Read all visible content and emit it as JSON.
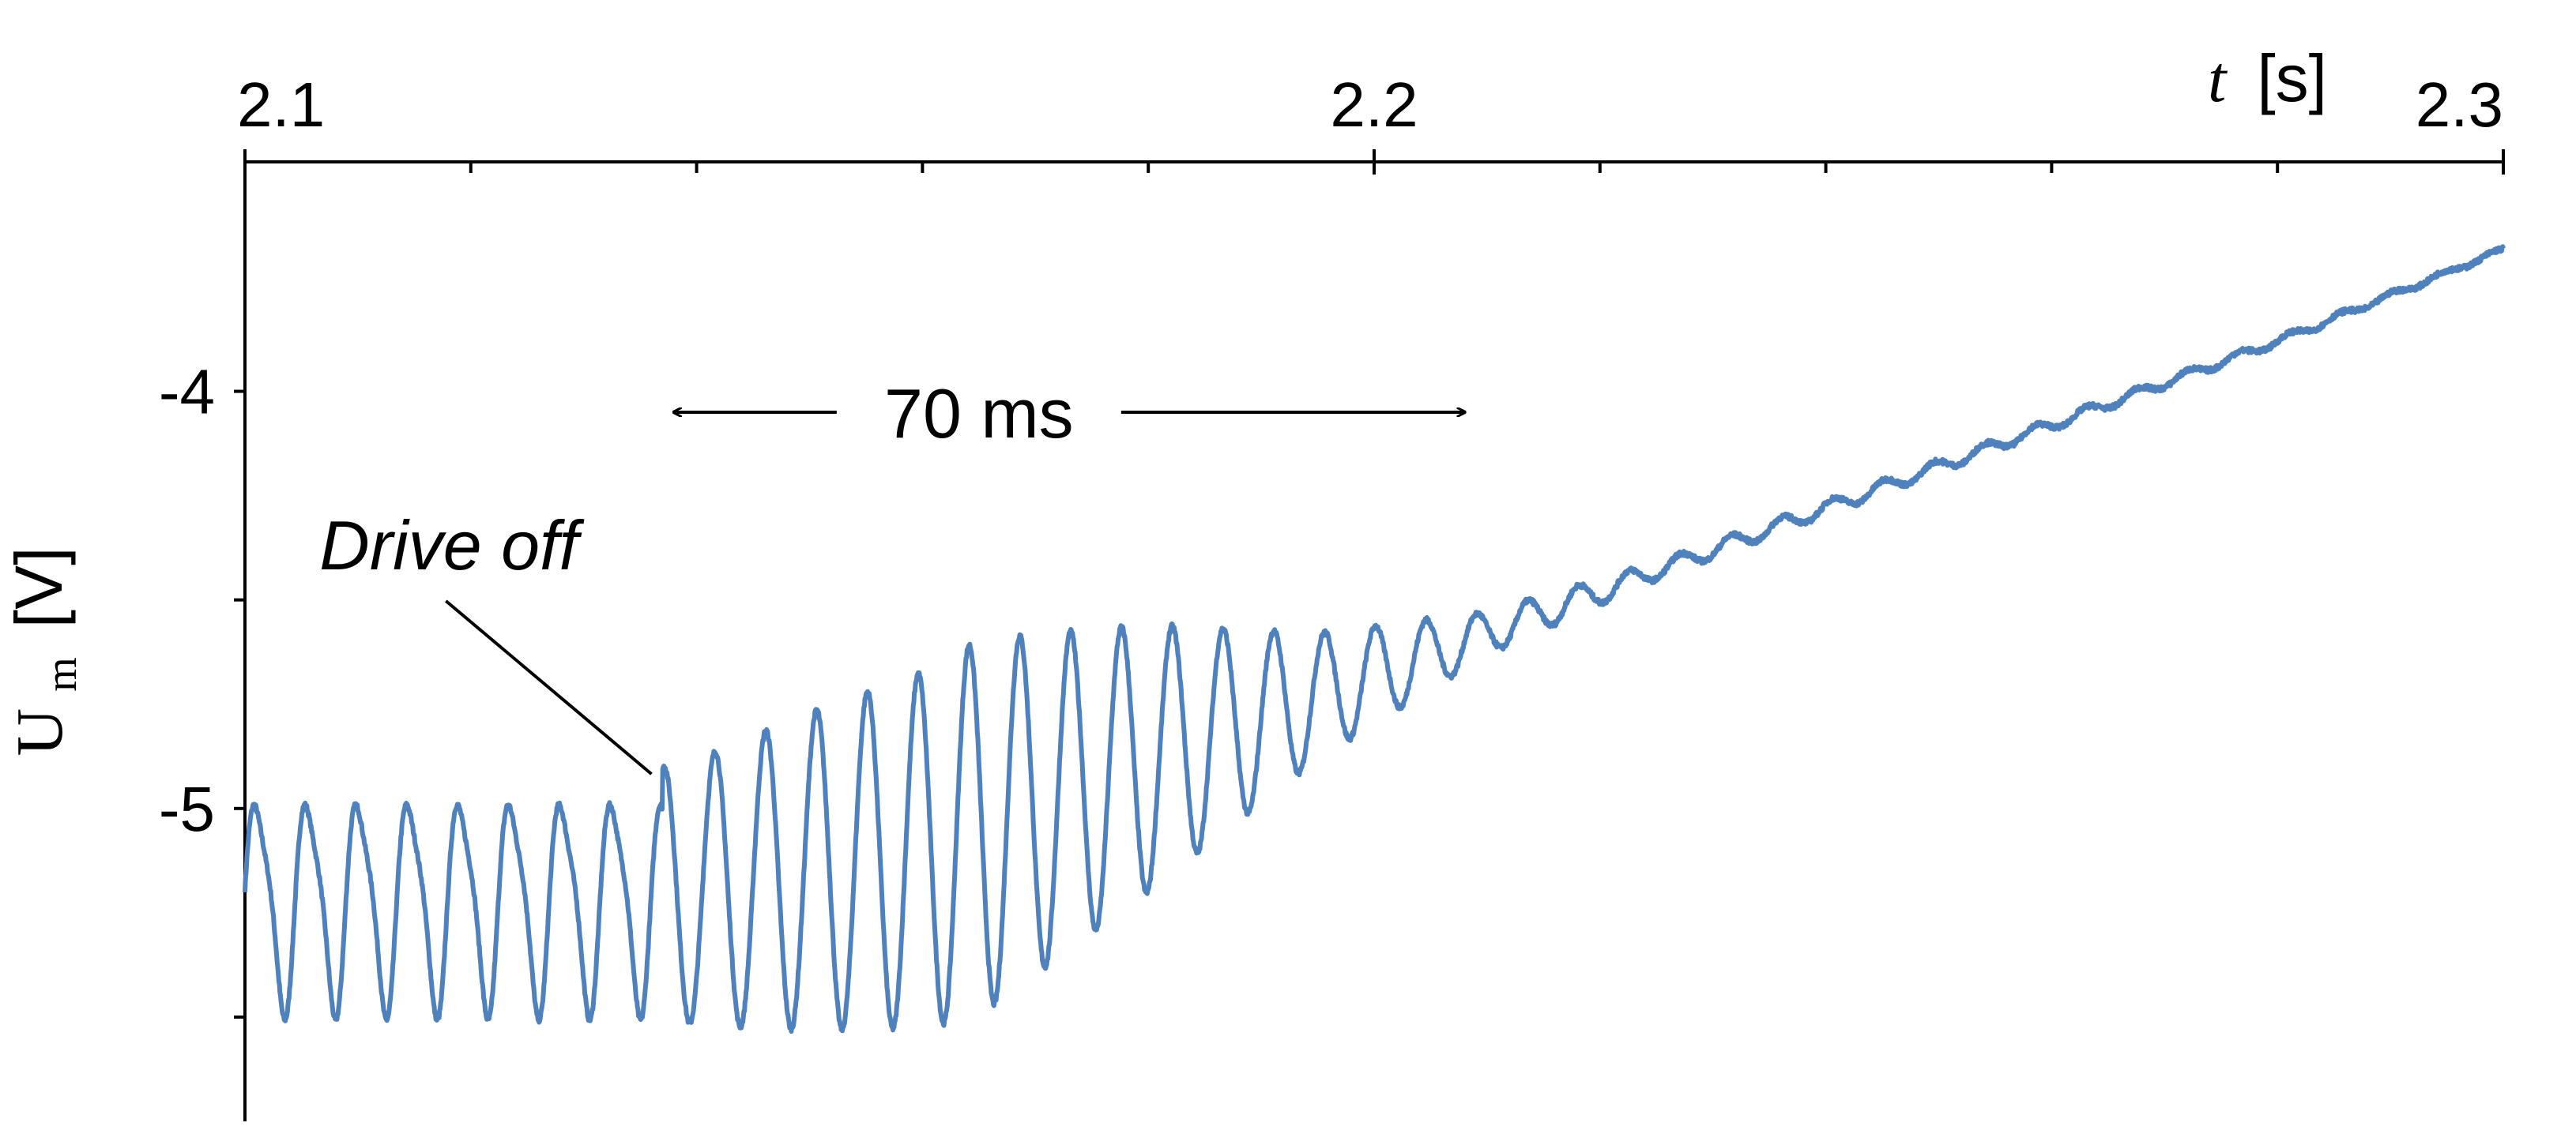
{
  "chart_data": {
    "type": "line",
    "xlabel_var": "t",
    "xlabel_unit": "[s]",
    "ylabel_var": "U",
    "ylabel_sub": "m",
    "ylabel_unit": "[V]",
    "x_axis_position": "top",
    "xlim": [
      2.1,
      2.3
    ],
    "ylim": [
      -5.75,
      -3.45
    ],
    "x_major_ticks": [
      2.1,
      2.2,
      2.3
    ],
    "x_tick_labels": [
      "2.1",
      "2.2",
      "2.3"
    ],
    "x_minor_ticks": [
      2.12,
      2.14,
      2.16,
      2.18,
      2.22,
      2.24,
      2.26,
      2.28
    ],
    "y_ticks": [
      -4.0,
      -4.5,
      -5.0,
      -5.5
    ],
    "y_tick_labels": [
      "-4",
      "",
      "-5",
      ""
    ],
    "grid": false,
    "series_color": "#4f81bd",
    "series": [
      {
        "oscillation_model": {
          "drive_off_t": 2.137,
          "period_s": 0.0045,
          "driven_top": -4.93,
          "driven_bottom": -5.52,
          "baseline": [
            {
              "t": 2.1,
              "u": -5.2
            },
            {
              "t": 2.14,
              "u": -5.2
            },
            {
              "t": 2.16,
              "u": -5.1
            },
            {
              "t": 2.18,
              "u": -4.88
            },
            {
              "t": 2.2,
              "u": -4.68
            },
            {
              "t": 2.22,
              "u": -4.48
            },
            {
              "t": 2.24,
              "u": -4.28
            },
            {
              "t": 2.26,
              "u": -4.08
            },
            {
              "t": 2.28,
              "u": -3.88
            },
            {
              "t": 2.3,
              "u": -3.66
            }
          ],
          "amplitude": [
            {
              "t": 2.1,
              "a": 0.3
            },
            {
              "t": 2.137,
              "a": 0.3
            },
            {
              "t": 2.15,
              "a": 0.38
            },
            {
              "t": 2.165,
              "a": 0.45
            },
            {
              "t": 2.18,
              "a": 0.32
            },
            {
              "t": 2.195,
              "a": 0.15
            },
            {
              "t": 2.21,
              "a": 0.05
            },
            {
              "t": 2.225,
              "a": 0.02
            },
            {
              "t": 2.3,
              "a": 0.005
            }
          ]
        }
      }
    ],
    "annotations": [
      {
        "text": "Drive off",
        "style": "italic",
        "t": 2.101,
        "u": -4.37,
        "points_to": {
          "t": 2.136,
          "u": -4.94
        }
      },
      {
        "text": "70 ms",
        "t": 2.165,
        "u": -4.05,
        "span": [
          2.138,
          2.208
        ]
      }
    ]
  }
}
